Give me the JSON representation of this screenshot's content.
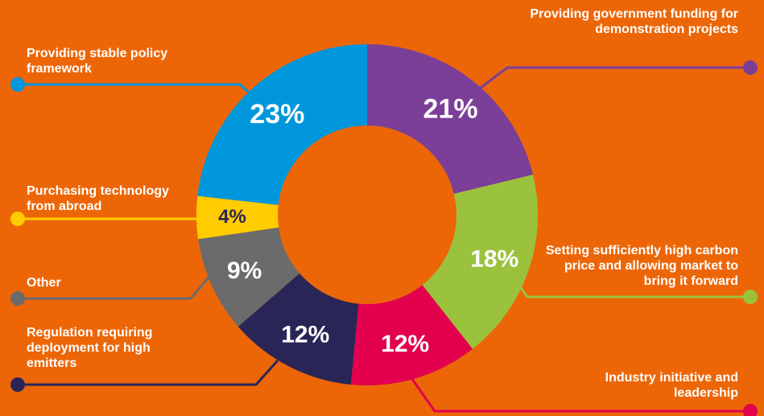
{
  "background_color": "#EC6608",
  "chart_data": {
    "type": "pie",
    "style": "donut",
    "title": "",
    "legend": "callout labels around the ring",
    "categories": [
      "Providing government funding for demonstration projects",
      "Setting sufficiently high carbon price and allowing market to bring it forward",
      "Industry initiative and leadership",
      "Regulation requiring deployment for high emitters",
      "Other",
      "Purchasing technology from abroad",
      "Providing stable policy framework"
    ],
    "values": [
      21,
      18,
      12,
      12,
      9,
      4,
      23
    ],
    "value_labels": [
      "21%",
      "18%",
      "12%",
      "12%",
      "9%",
      "4%",
      "23%"
    ],
    "colors": [
      "#7B3F98",
      "#9BC23C",
      "#E2004F",
      "#2A2557",
      "#6B6B6B",
      "#FFCC00",
      "#0096DB"
    ]
  }
}
